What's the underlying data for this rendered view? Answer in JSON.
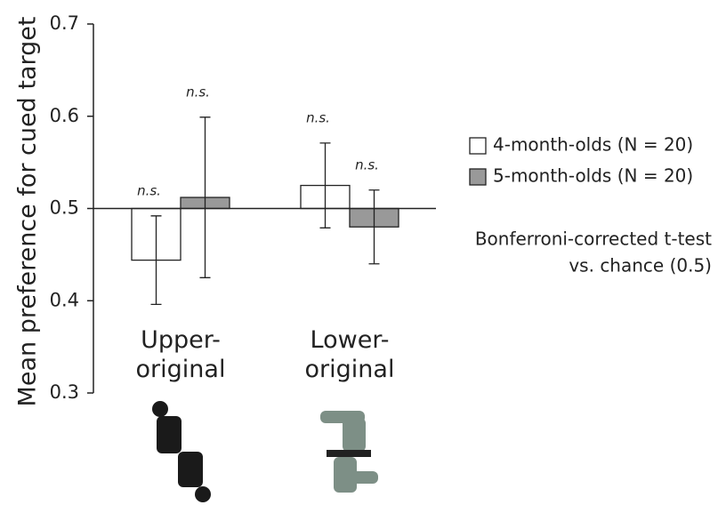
{
  "chart_data": {
    "type": "bar",
    "y_label": "Mean preference for cued target",
    "categories": [
      "Upper-original",
      "Lower-original"
    ],
    "series": [
      {
        "name": "4-month-olds (N = 20)",
        "color": "#ffffff",
        "values": [
          0.444,
          0.525
        ],
        "errors": [
          0.048,
          0.046
        ],
        "labels": [
          "n.s.",
          "n.s."
        ]
      },
      {
        "name": "5-month-olds (N = 20)",
        "color": "#999999",
        "values": [
          0.512,
          0.48
        ],
        "errors": [
          0.087,
          0.04
        ],
        "labels": [
          "n.s.",
          "n.s."
        ]
      }
    ],
    "baseline": 0.5,
    "ylim": [
      0.3,
      0.7
    ],
    "yticks": [
      0.3,
      0.4,
      0.5,
      0.6,
      0.7
    ],
    "note": [
      "Bonferroni-corrected t-test",
      "vs. chance (0.5)"
    ]
  }
}
